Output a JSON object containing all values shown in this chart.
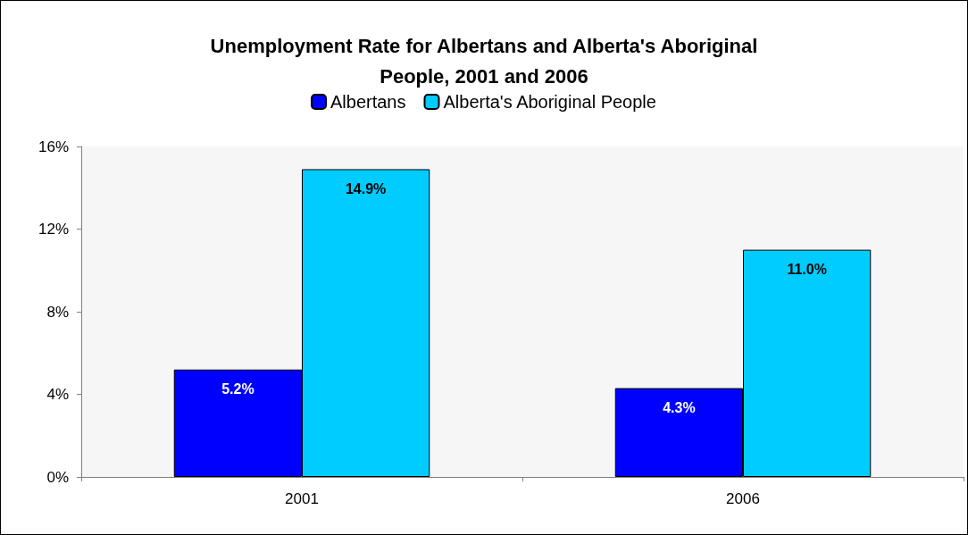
{
  "chart_data": {
    "type": "bar",
    "title": "Unemployment Rate for Albertans and Alberta's Aboriginal\nPeople, 2001 and 2006",
    "categories": [
      "2001",
      "2006"
    ],
    "series": [
      {
        "name": "Albertans",
        "color": "#0000ff",
        "values": [
          5.2,
          4.3
        ],
        "value_labels": [
          "5.2%",
          "4.3%"
        ]
      },
      {
        "name": "Alberta's Aboriginal People",
        "color": "#00ccff",
        "values": [
          14.9,
          11.0
        ],
        "value_labels": [
          "14.9%",
          "11.0%"
        ]
      }
    ],
    "ylim": [
      0,
      16
    ],
    "yticks": [
      {
        "value": 0,
        "label": "0%"
      },
      {
        "value": 4,
        "label": "4%"
      },
      {
        "value": 8,
        "label": "8%"
      },
      {
        "value": 12,
        "label": "12%"
      },
      {
        "value": 16,
        "label": "16%"
      }
    ],
    "grid": false,
    "legend": "top"
  }
}
